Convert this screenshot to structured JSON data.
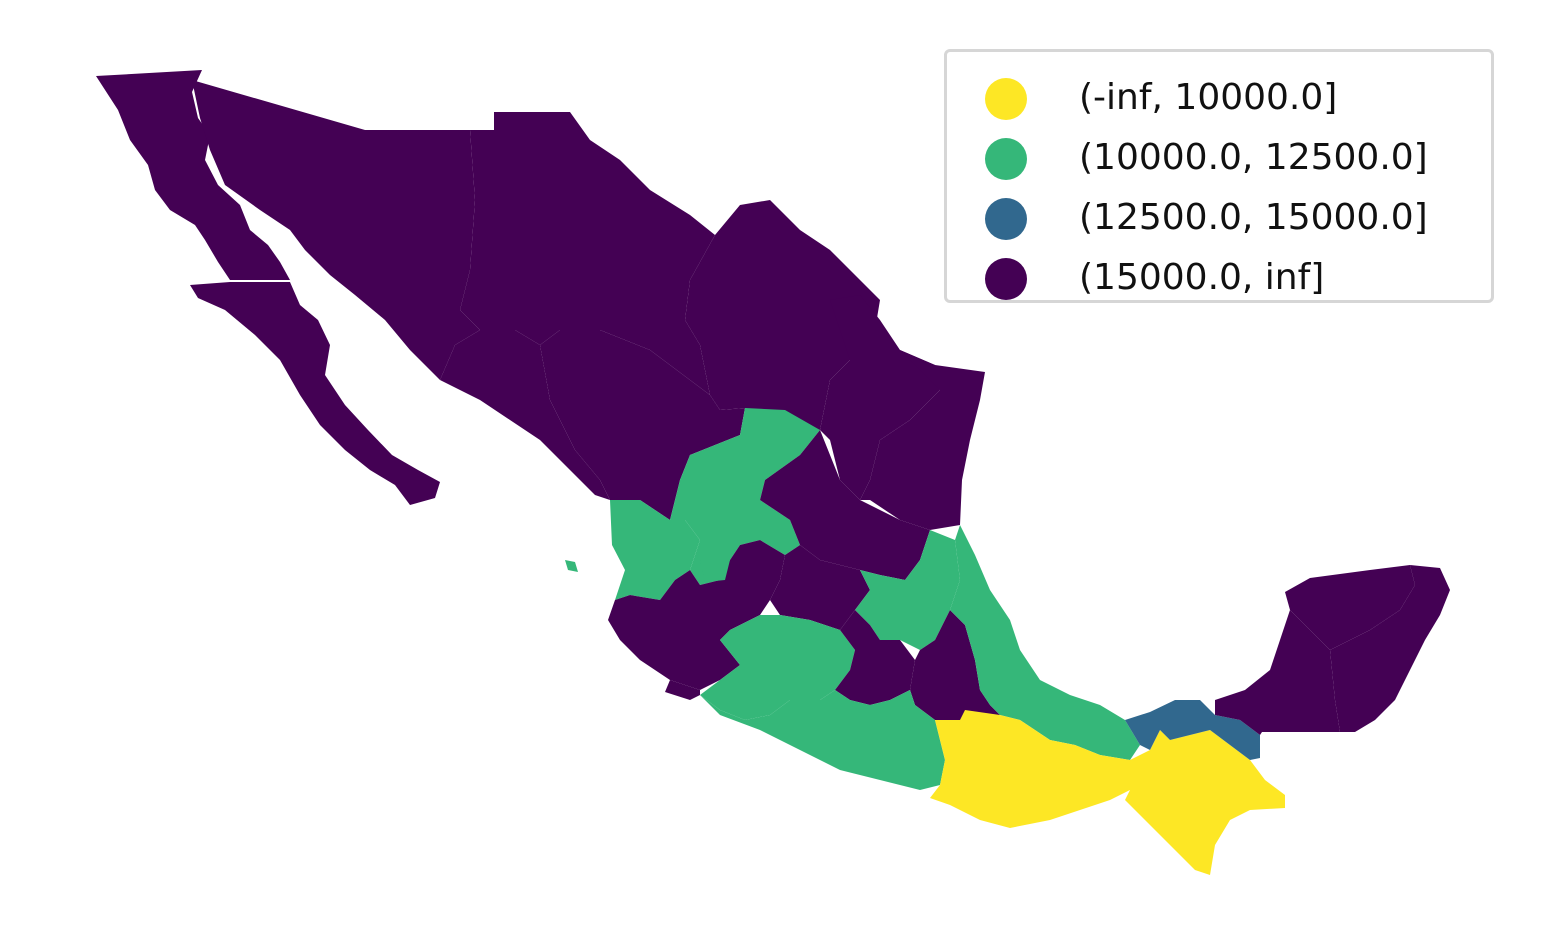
{
  "map": {
    "colors": {
      "class_1": "#fde725",
      "class_2": "#35b779",
      "class_3": "#31688e",
      "class_4": "#440154"
    },
    "legend": [
      {
        "label": "(-inf, 10000.0]",
        "color": "#fde725"
      },
      {
        "label": "(10000.0, 12500.0]",
        "color": "#35b779"
      },
      {
        "label": "(12500.0, 15000.0]",
        "color": "#31688e"
      },
      {
        "label": "(15000.0, inf]",
        "color": "#440154"
      }
    ]
  }
}
